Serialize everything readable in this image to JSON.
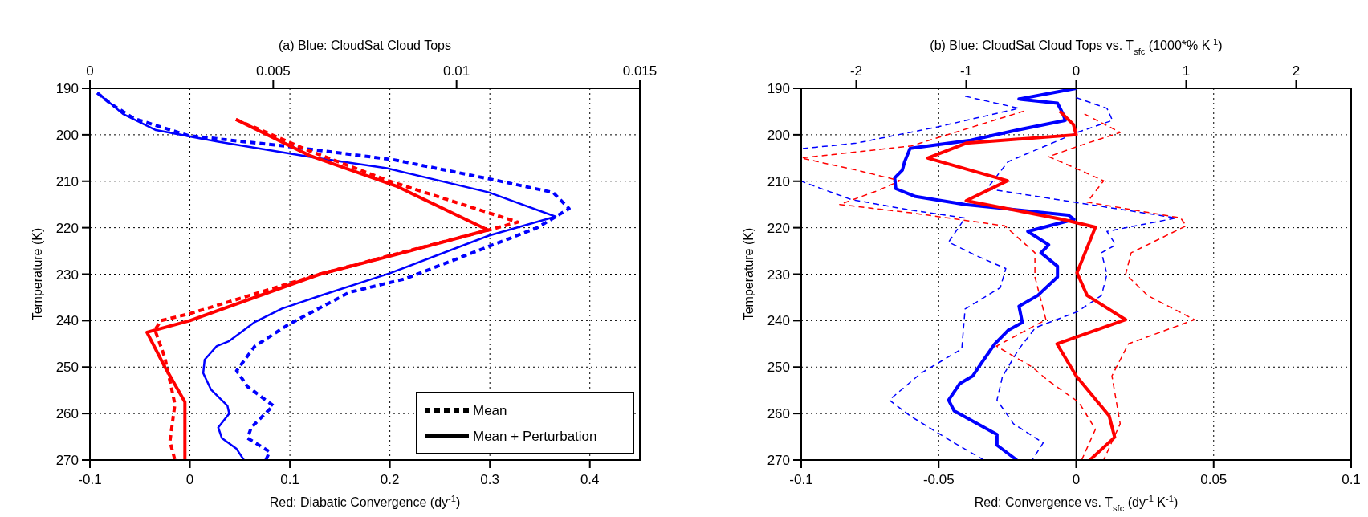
{
  "chart_data": [
    {
      "type": "line",
      "title": "(a) Blue: CloudSat Cloud Tops",
      "xlabel": "Red: Diabatic Convergence (dy$^{-1}$)",
      "ylabel": "Temperature (K)",
      "xlim": [
        -0.1,
        0.45
      ],
      "xticks": [
        -0.1,
        0,
        0.1,
        0.2,
        0.3,
        0.4
      ],
      "x2lim": [
        0,
        0.015
      ],
      "x2ticks": [
        0,
        0.005,
        0.01,
        0.015
      ],
      "ylim": [
        270,
        190
      ],
      "yticks": [
        190,
        200,
        210,
        220,
        230,
        240,
        250,
        260,
        270
      ],
      "grid": true,
      "annotations": [
        "Mean",
        "Mean + Perturbation"
      ],
      "series": [
        {
          "color": "#0000ff",
          "axis": "x2",
          "line_style": "dashed",
          "x": [
            0.0002,
            0.0006,
            0.0012,
            0.0027,
            0.0054,
            0.0083,
            0.0109,
            0.01263,
            0.01307,
            0.0122,
            0.0086,
            0.00708,
            0.0054,
            0.0045,
            0.004,
            0.0043,
            0.005,
            0.0044,
            0.0043,
            0.0049,
            0.0048
          ],
          "values": [
            191,
            193.5,
            196.5,
            200.2,
            202.5,
            205.4,
            209.5,
            212.4,
            215.9,
            220,
            231,
            233.9,
            240.9,
            245.5,
            250.8,
            254.2,
            258.3,
            263,
            265.3,
            268.2,
            270
          ]
        },
        {
          "color": "#0000ff",
          "axis": "x2",
          "line_style": "solid",
          "x": [
            0.0002,
            0.0006,
            0.0009,
            0.0018,
            0.0035,
            0.00605,
            0.0081,
            0.01088,
            0.0127,
            0.01088,
            0.00818,
            0.00634,
            0.00524,
            0.0045,
            0.0038,
            0.00346,
            0.00313,
            0.00309,
            0.0033,
            0.00375,
            0.0038,
            0.0035,
            0.0036,
            0.004,
            0.0042
          ],
          "values": [
            191,
            193.5,
            195.5,
            199,
            201.5,
            204.8,
            207.2,
            212.4,
            217.6,
            221.7,
            229.8,
            234.5,
            237.4,
            240.3,
            244.4,
            245.5,
            248.4,
            251.3,
            254.8,
            258.3,
            260,
            263,
            265.3,
            267.6,
            270
          ]
        },
        {
          "color": "#ff0000",
          "line_style": "dashed",
          "x": [
            0.046,
            0.12,
            0.2,
            0.328,
            0.29,
            0.2,
            0.13,
            0.0,
            -0.029,
            -0.035,
            -0.025,
            -0.015,
            -0.02,
            -0.015
          ],
          "values": [
            196.7,
            203.5,
            210,
            218.8,
            221,
            226,
            230,
            238.5,
            240,
            242,
            248,
            258,
            266,
            270
          ]
        },
        {
          "color": "#ff0000",
          "line_style": "solid",
          "x": [
            0.046,
            0.12,
            0.206,
            0.298,
            0.206,
            0.13,
            0.0,
            -0.043,
            -0.025,
            -0.005,
            -0.005
          ],
          "values": [
            196.7,
            204.5,
            211,
            220.5,
            225.8,
            230,
            240,
            242.5,
            250,
            257.5,
            270
          ]
        }
      ]
    },
    {
      "type": "line",
      "title": "(b) Blue: CloudSat Cloud Tops vs. T$_{sfc}$ (1000*% K$^{-1}$)",
      "xlabel": "Red: Convergence vs. T$_{sfc}$ (dy$^{-1}$ K$^{-1}$)",
      "ylabel": "Temperature (K)",
      "xlim": [
        -0.1,
        0.1
      ],
      "xticks": [
        -0.1,
        -0.05,
        0,
        0.05,
        0.1
      ],
      "x2lim": [
        -2.5,
        2.5
      ],
      "x2ticks": [
        -2,
        -1,
        0,
        1,
        2
      ],
      "ylim": [
        270,
        190
      ],
      "yticks": [
        190,
        200,
        210,
        220,
        230,
        240,
        250,
        260,
        270
      ],
      "grid": true,
      "ref_lines": [
        {
          "axis": "x",
          "value": 0,
          "color": "#000000"
        }
      ],
      "series": [
        {
          "color": "#0000ff",
          "axis": "x2",
          "line_style": "dashed",
          "x": [
            -1.01,
            -0.52,
            -1.26,
            -2.0,
            -2.5,
            -2.5,
            -2.05,
            -1.51,
            -1.01,
            -1.16,
            -0.91,
            -0.64,
            -0.69,
            -1.01,
            -1.04,
            -1.41,
            -1.7,
            -1.51,
            -1.11,
            -0.84
          ],
          "values": [
            191.7,
            194.3,
            198.3,
            201.8,
            203,
            210,
            213.9,
            216.2,
            217.9,
            223.1,
            226,
            228.8,
            232.9,
            237.5,
            246.1,
            251.3,
            257.1,
            260.5,
            266.3,
            270
          ]
        },
        {
          "color": "#0000ff",
          "axis": "x2",
          "line_style": "dashed",
          "x": [
            0.0,
            0.28,
            0.33,
            0.01,
            -0.62,
            -0.81,
            0.91,
            0.28,
            0.36,
            0.23,
            0.28,
            0.23,
            0.01,
            -0.37,
            -0.52,
            -0.67,
            -0.72,
            -0.57,
            -0.3,
            -0.4
          ],
          "values": [
            192,
            194.3,
            196.9,
            199.5,
            205.8,
            211.6,
            217.9,
            220.8,
            223.7,
            225.4,
            230,
            234.6,
            238.1,
            241.5,
            246.1,
            252,
            257.1,
            262.2,
            266.3,
            270
          ]
        },
        {
          "color": "#0000ff",
          "axis": "x2",
          "line_style": "solid",
          "x": [
            0,
            -0.52,
            -0.17,
            -0.12,
            -0.1,
            -0.52,
            -0.96,
            -1.51,
            -1.56,
            -1.58,
            -1.65,
            -1.64,
            -1.46,
            -1.01,
            -0.52,
            -0.07,
            -0.02,
            -0.44,
            -0.25,
            -0.32,
            -0.17,
            -0.17,
            -0.35,
            -0.52,
            -0.49,
            -0.62,
            -0.74,
            -0.84,
            -0.94,
            -1.06,
            -1.16,
            -1.11,
            -0.72,
            -0.72,
            -0.54
          ],
          "values": [
            190,
            192.3,
            193.2,
            195.5,
            196.9,
            198.9,
            201.2,
            202.9,
            205.8,
            207.6,
            209.3,
            211.6,
            213.3,
            215,
            216.2,
            217.3,
            218.2,
            220.8,
            223.7,
            225.4,
            228.3,
            230.6,
            234.6,
            236.9,
            240.4,
            242.1,
            245,
            248.4,
            251.9,
            253.6,
            257.1,
            259.4,
            264.5,
            266.8,
            270
          ]
        },
        {
          "color": "#ff0000",
          "line_style": "dashed",
          "x": [
            -0.019,
            -0.06,
            -0.1,
            -0.08,
            -0.064,
            -0.073,
            -0.086,
            -0.06,
            -0.026,
            -0.015,
            -0.015,
            -0.011,
            -0.029,
            -0.016,
            -0.01,
            0.001,
            0.007,
            0.002
          ],
          "values": [
            194.9,
            202.4,
            205,
            207.6,
            209.9,
            212.2,
            215,
            216.8,
            219.6,
            225.4,
            230.6,
            239.8,
            245.5,
            250,
            253,
            257.6,
            263.4,
            270
          ]
        },
        {
          "color": "#ff0000",
          "line_style": "dashed",
          "x": [
            0.003,
            0.016,
            0.001,
            -0.01,
            -0.001,
            0.01,
            0.004,
            0.038,
            0.04,
            0.02,
            0.018,
            0.026,
            0.043,
            0.019,
            0.013,
            0.016,
            0.01
          ],
          "values": [
            195.5,
            199.5,
            202.4,
            204.7,
            207,
            209.9,
            214.5,
            217.9,
            219.6,
            225.4,
            230,
            234.6,
            239.8,
            245,
            251.9,
            262.2,
            270
          ]
        },
        {
          "color": "#ff0000",
          "line_style": "solid",
          "x": [
            -0.006,
            -0.001,
            0,
            -0.04,
            -0.054,
            -0.025,
            -0.04,
            -0.005,
            0.007,
            0.0003,
            0.004,
            0.018,
            -0.007,
            0,
            0.012,
            0.014,
            0.005
          ],
          "values": [
            194.9,
            197.8,
            200,
            201.8,
            205,
            209.9,
            214.2,
            218.2,
            219.9,
            229.7,
            234.6,
            239.8,
            245,
            251.9,
            260.5,
            265.1,
            270
          ]
        }
      ]
    }
  ]
}
